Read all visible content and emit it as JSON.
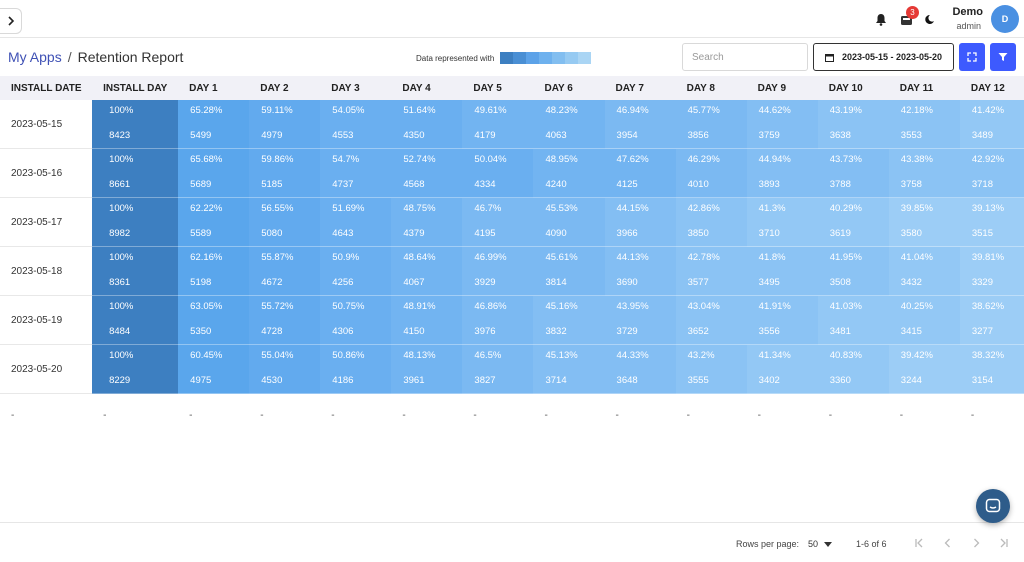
{
  "header": {
    "notification_badge": "3",
    "user_name": "Demo",
    "user_role": "admin",
    "avatar_initial": "D"
  },
  "breadcrumb": {
    "root": "My Apps",
    "separator": "/",
    "current": "Retention Report"
  },
  "legend": {
    "label": "Data represented with",
    "colors": [
      "#3d7fc1",
      "#4a8fd4",
      "#5ca2e8",
      "#6eb1ee",
      "#82bef0",
      "#96caf2",
      "#aad5f4"
    ]
  },
  "search": {
    "placeholder": "Search",
    "value": ""
  },
  "date_range": "2023-05-15 - 2023-05-20",
  "table": {
    "columns": [
      "INSTALL DATE",
      "INSTALL DAY",
      "DAY 1",
      "DAY 2",
      "DAY 3",
      "DAY 4",
      "DAY 5",
      "DAY 6",
      "DAY 7",
      "DAY 8",
      "DAY 9",
      "DAY 10",
      "DAY 11",
      "DAY 12"
    ],
    "rows": [
      {
        "date": "2023-05-15",
        "cells": [
          [
            "100%",
            "8423"
          ],
          [
            "65.28%",
            "5499"
          ],
          [
            "59.11%",
            "4979"
          ],
          [
            "54.05%",
            "4553"
          ],
          [
            "51.64%",
            "4350"
          ],
          [
            "49.61%",
            "4179"
          ],
          [
            "48.23%",
            "4063"
          ],
          [
            "46.94%",
            "3954"
          ],
          [
            "45.77%",
            "3856"
          ],
          [
            "44.62%",
            "3759"
          ],
          [
            "43.19%",
            "3638"
          ],
          [
            "42.18%",
            "3553"
          ],
          [
            "41.42%",
            "3489"
          ]
        ]
      },
      {
        "date": "2023-05-16",
        "cells": [
          [
            "100%",
            "8661"
          ],
          [
            "65.68%",
            "5689"
          ],
          [
            "59.86%",
            "5185"
          ],
          [
            "54.7%",
            "4737"
          ],
          [
            "52.74%",
            "4568"
          ],
          [
            "50.04%",
            "4334"
          ],
          [
            "48.95%",
            "4240"
          ],
          [
            "47.62%",
            "4125"
          ],
          [
            "46.29%",
            "4010"
          ],
          [
            "44.94%",
            "3893"
          ],
          [
            "43.73%",
            "3788"
          ],
          [
            "43.38%",
            "3758"
          ],
          [
            "42.92%",
            "3718"
          ]
        ]
      },
      {
        "date": "2023-05-17",
        "cells": [
          [
            "100%",
            "8982"
          ],
          [
            "62.22%",
            "5589"
          ],
          [
            "56.55%",
            "5080"
          ],
          [
            "51.69%",
            "4643"
          ],
          [
            "48.75%",
            "4379"
          ],
          [
            "46.7%",
            "4195"
          ],
          [
            "45.53%",
            "4090"
          ],
          [
            "44.15%",
            "3966"
          ],
          [
            "42.86%",
            "3850"
          ],
          [
            "41.3%",
            "3710"
          ],
          [
            "40.29%",
            "3619"
          ],
          [
            "39.85%",
            "3580"
          ],
          [
            "39.13%",
            "3515"
          ]
        ]
      },
      {
        "date": "2023-05-18",
        "cells": [
          [
            "100%",
            "8361"
          ],
          [
            "62.16%",
            "5198"
          ],
          [
            "55.87%",
            "4672"
          ],
          [
            "50.9%",
            "4256"
          ],
          [
            "48.64%",
            "4067"
          ],
          [
            "46.99%",
            "3929"
          ],
          [
            "45.61%",
            "3814"
          ],
          [
            "44.13%",
            "3690"
          ],
          [
            "42.78%",
            "3577"
          ],
          [
            "41.8%",
            "3495"
          ],
          [
            "41.95%",
            "3508"
          ],
          [
            "41.04%",
            "3432"
          ],
          [
            "39.81%",
            "3329"
          ]
        ]
      },
      {
        "date": "2023-05-19",
        "cells": [
          [
            "100%",
            "8484"
          ],
          [
            "63.05%",
            "5350"
          ],
          [
            "55.72%",
            "4728"
          ],
          [
            "50.75%",
            "4306"
          ],
          [
            "48.91%",
            "4150"
          ],
          [
            "46.86%",
            "3976"
          ],
          [
            "45.16%",
            "3832"
          ],
          [
            "43.95%",
            "3729"
          ],
          [
            "43.04%",
            "3652"
          ],
          [
            "41.91%",
            "3556"
          ],
          [
            "41.03%",
            "3481"
          ],
          [
            "40.25%",
            "3415"
          ],
          [
            "38.62%",
            "3277"
          ]
        ]
      },
      {
        "date": "2023-05-20",
        "cells": [
          [
            "100%",
            "8229"
          ],
          [
            "60.45%",
            "4975"
          ],
          [
            "55.04%",
            "4530"
          ],
          [
            "50.86%",
            "4186"
          ],
          [
            "48.13%",
            "3961"
          ],
          [
            "46.5%",
            "3827"
          ],
          [
            "45.13%",
            "3714"
          ],
          [
            "44.33%",
            "3648"
          ],
          [
            "43.2%",
            "3555"
          ],
          [
            "41.34%",
            "3402"
          ],
          [
            "40.83%",
            "3360"
          ],
          [
            "39.42%",
            "3244"
          ],
          [
            "38.32%",
            "3154"
          ]
        ]
      }
    ],
    "empty_row_value": "-"
  },
  "pagination": {
    "rows_per_page_label": "Rows per page:",
    "rows_per_page_value": "50",
    "range": "1-6 of 6"
  }
}
